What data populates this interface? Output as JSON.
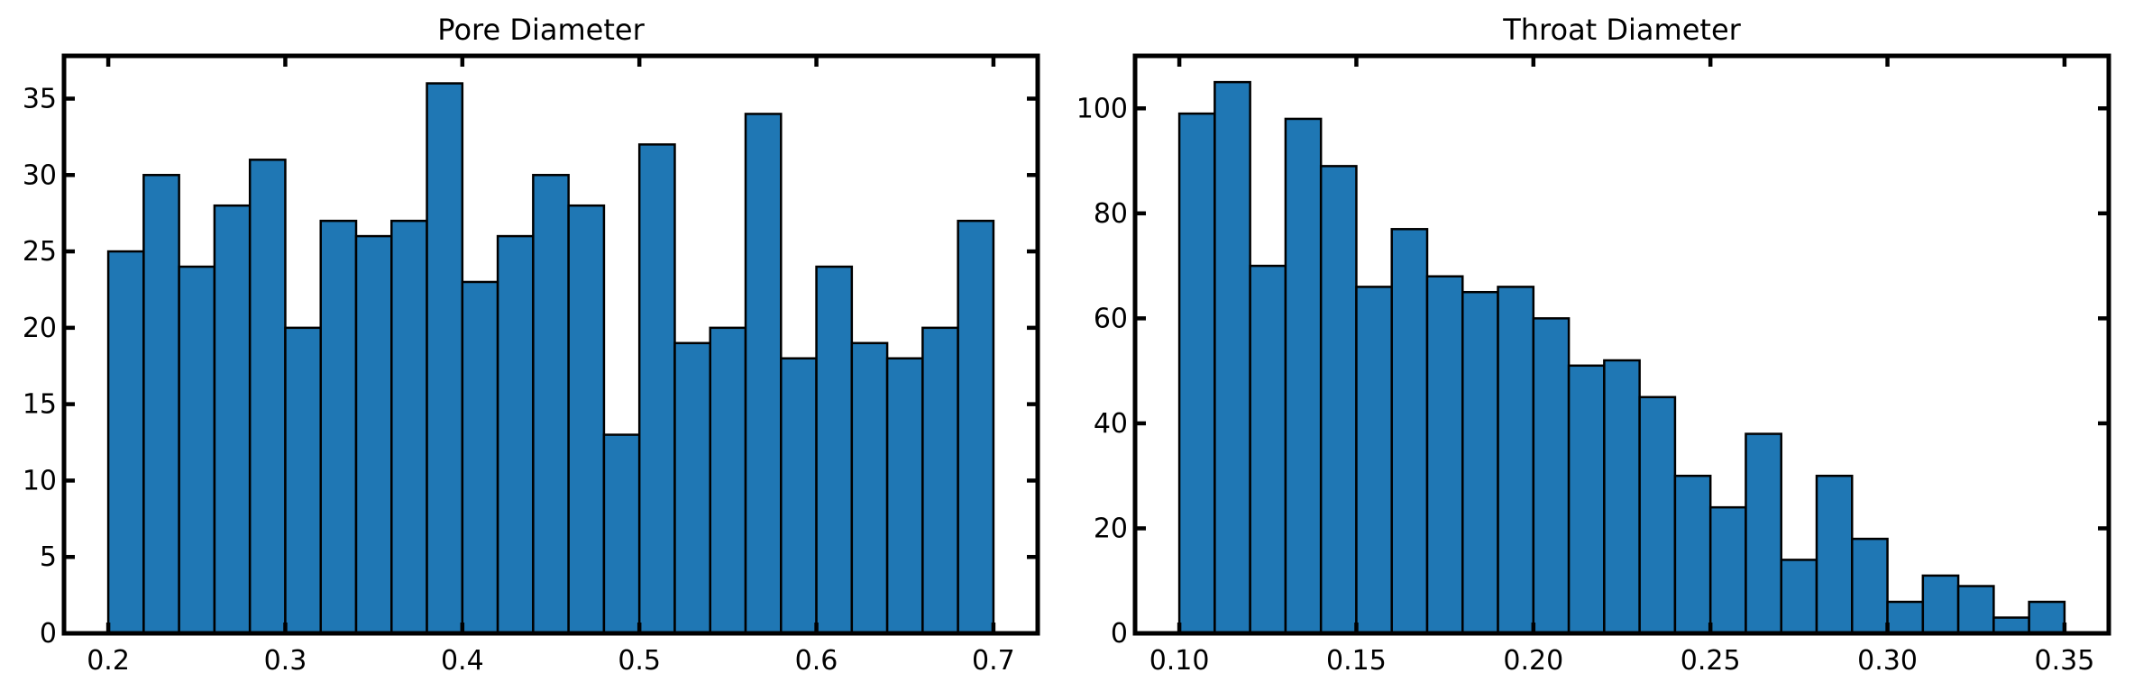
{
  "chart_data": [
    {
      "type": "bar",
      "title": "Pore Diameter",
      "xlabel": "",
      "ylabel": "",
      "bin_edges": [
        0.2,
        0.22,
        0.24,
        0.26,
        0.28,
        0.3,
        0.32,
        0.34,
        0.36,
        0.38,
        0.4,
        0.42,
        0.44,
        0.46,
        0.48,
        0.5,
        0.52,
        0.54,
        0.56,
        0.58,
        0.6,
        0.62,
        0.64,
        0.66,
        0.68,
        0.7
      ],
      "values": [
        25,
        30,
        24,
        28,
        31,
        20,
        27,
        26,
        27,
        36,
        23,
        26,
        30,
        28,
        13,
        32,
        19,
        20,
        34,
        18,
        24,
        19,
        18,
        20,
        27
      ],
      "xlim": [
        0.175,
        0.725
      ],
      "ylim": [
        0,
        37.8
      ],
      "xticks": [
        0.2,
        0.3,
        0.4,
        0.5,
        0.6,
        0.7
      ],
      "xtick_labels": [
        "0.2",
        "0.3",
        "0.4",
        "0.5",
        "0.6",
        "0.7"
      ],
      "yticks": [
        0,
        5,
        10,
        15,
        20,
        25,
        30,
        35
      ],
      "ytick_labels": [
        "0",
        "5",
        "10",
        "15",
        "20",
        "25",
        "30",
        "35"
      ],
      "grid": false,
      "bar_color": "#1f77b4",
      "edge_color": "#000000"
    },
    {
      "type": "bar",
      "title": "Throat Diameter",
      "xlabel": "",
      "ylabel": "",
      "bin_edges": [
        0.1,
        0.11,
        0.12,
        0.13,
        0.14,
        0.15,
        0.16,
        0.17,
        0.18,
        0.19,
        0.2,
        0.21,
        0.22,
        0.23,
        0.24,
        0.25,
        0.26,
        0.27,
        0.28,
        0.29,
        0.3,
        0.31,
        0.32,
        0.33,
        0.34,
        0.35
      ],
      "values": [
        99,
        105,
        70,
        98,
        89,
        66,
        77,
        68,
        65,
        66,
        60,
        51,
        52,
        45,
        30,
        24,
        38,
        14,
        30,
        18,
        6,
        11,
        9,
        3,
        6
      ],
      "xlim": [
        0.0875,
        0.3625
      ],
      "ylim": [
        0,
        110
      ],
      "xticks": [
        0.1,
        0.15,
        0.2,
        0.25,
        0.3,
        0.35
      ],
      "xtick_labels": [
        "0.10",
        "0.15",
        "0.20",
        "0.25",
        "0.30",
        "0.35"
      ],
      "yticks": [
        0,
        20,
        40,
        60,
        80,
        100
      ],
      "ytick_labels": [
        "0",
        "20",
        "40",
        "60",
        "80",
        "100"
      ],
      "grid": false,
      "bar_color": "#1f77b4",
      "edge_color": "#000000"
    }
  ]
}
